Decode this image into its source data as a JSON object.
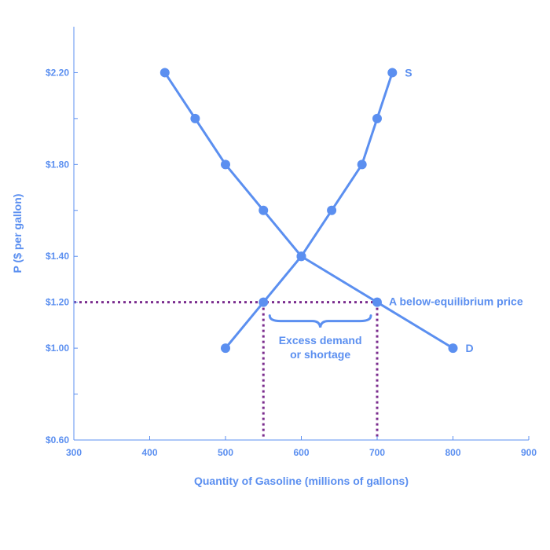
{
  "colors": {
    "series": "#5b8ff0",
    "text": "#5b8ff0",
    "axis": "#5b8ff0",
    "guide": "#7b2d8e"
  },
  "chart_data": {
    "type": "line",
    "title": "",
    "xlabel": "Quantity of Gasoline (millions of gallons)",
    "ylabel": "P ($ per gallon)",
    "xlim": [
      300,
      900
    ],
    "ylim": [
      0.6,
      2.4
    ],
    "x_ticks": [
      300,
      400,
      500,
      600,
      700,
      800,
      900
    ],
    "x_tick_labels": [
      "300",
      "400",
      "500",
      "600",
      "700",
      "800",
      "900"
    ],
    "y_ticks": [
      0.6,
      1.0,
      1.2,
      1.4,
      1.8,
      2.2
    ],
    "y_tick_labels": [
      "$0.60",
      "$1.00",
      "$1.20",
      "$1.40",
      "$1.80",
      "$2.20"
    ],
    "y_minor_ticks": [
      0.8,
      1.6,
      2.0
    ],
    "grid": false,
    "series": [
      {
        "name": "S",
        "x": [
          500,
          550,
          600,
          640,
          680,
          700,
          720
        ],
        "y": [
          1.0,
          1.2,
          1.4,
          1.6,
          1.8,
          2.0,
          2.2
        ]
      },
      {
        "name": "D",
        "x": [
          420,
          460,
          500,
          550,
          600,
          700,
          800
        ],
        "y": [
          2.2,
          2.0,
          1.8,
          1.6,
          1.4,
          1.2,
          1.0
        ]
      }
    ],
    "price_line": {
      "price": 1.2,
      "quantity_supplied": 550,
      "quantity_demanded": 700,
      "label": "A below-equilibrium price"
    },
    "annotations": {
      "gap_label_line1": "Excess demand",
      "gap_label_line2": "or shortage"
    }
  }
}
